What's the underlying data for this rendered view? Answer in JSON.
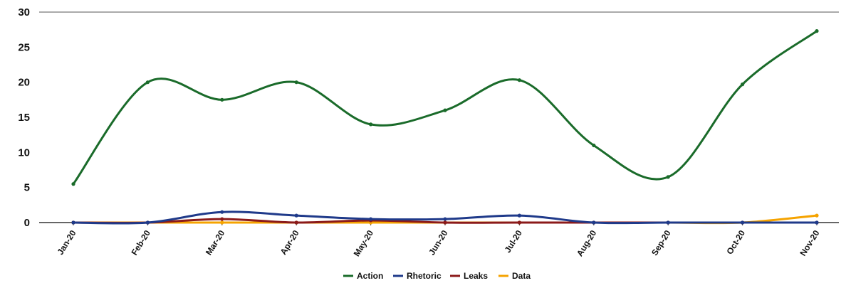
{
  "chart_data": {
    "type": "line",
    "categories": [
      "Jan-20",
      "Feb-20",
      "Mar-20",
      "Apr-20",
      "May-20",
      "Jun-20",
      "Jul-20",
      "Aug-20",
      "Sep-20",
      "Oct-20",
      "Nov-20"
    ],
    "ylim": [
      0,
      30
    ],
    "yticks": [
      "0",
      "5",
      "10",
      "15",
      "20",
      "25",
      "30"
    ],
    "grid": false,
    "legend_position": "bottom",
    "series": [
      {
        "name": "Action",
        "color": "#1a6b2a",
        "values": [
          5.5,
          20,
          17.5,
          20,
          14,
          16,
          20.3,
          11,
          6.5,
          19.7,
          27.3
        ]
      },
      {
        "name": "Rhetoric",
        "color": "#1f3a8a",
        "values": [
          0,
          0,
          1.5,
          1,
          0.5,
          0.5,
          1,
          0,
          0,
          0,
          0
        ]
      },
      {
        "name": "Leaks",
        "color": "#8b1a1a",
        "values": [
          0,
          0,
          0.5,
          0,
          0.3,
          0,
          0,
          0,
          0,
          0,
          0
        ]
      },
      {
        "name": "Data",
        "color": "#f5a300",
        "values": [
          0,
          0,
          0,
          0,
          0,
          0,
          0,
          0,
          0,
          0,
          1
        ]
      }
    ]
  }
}
